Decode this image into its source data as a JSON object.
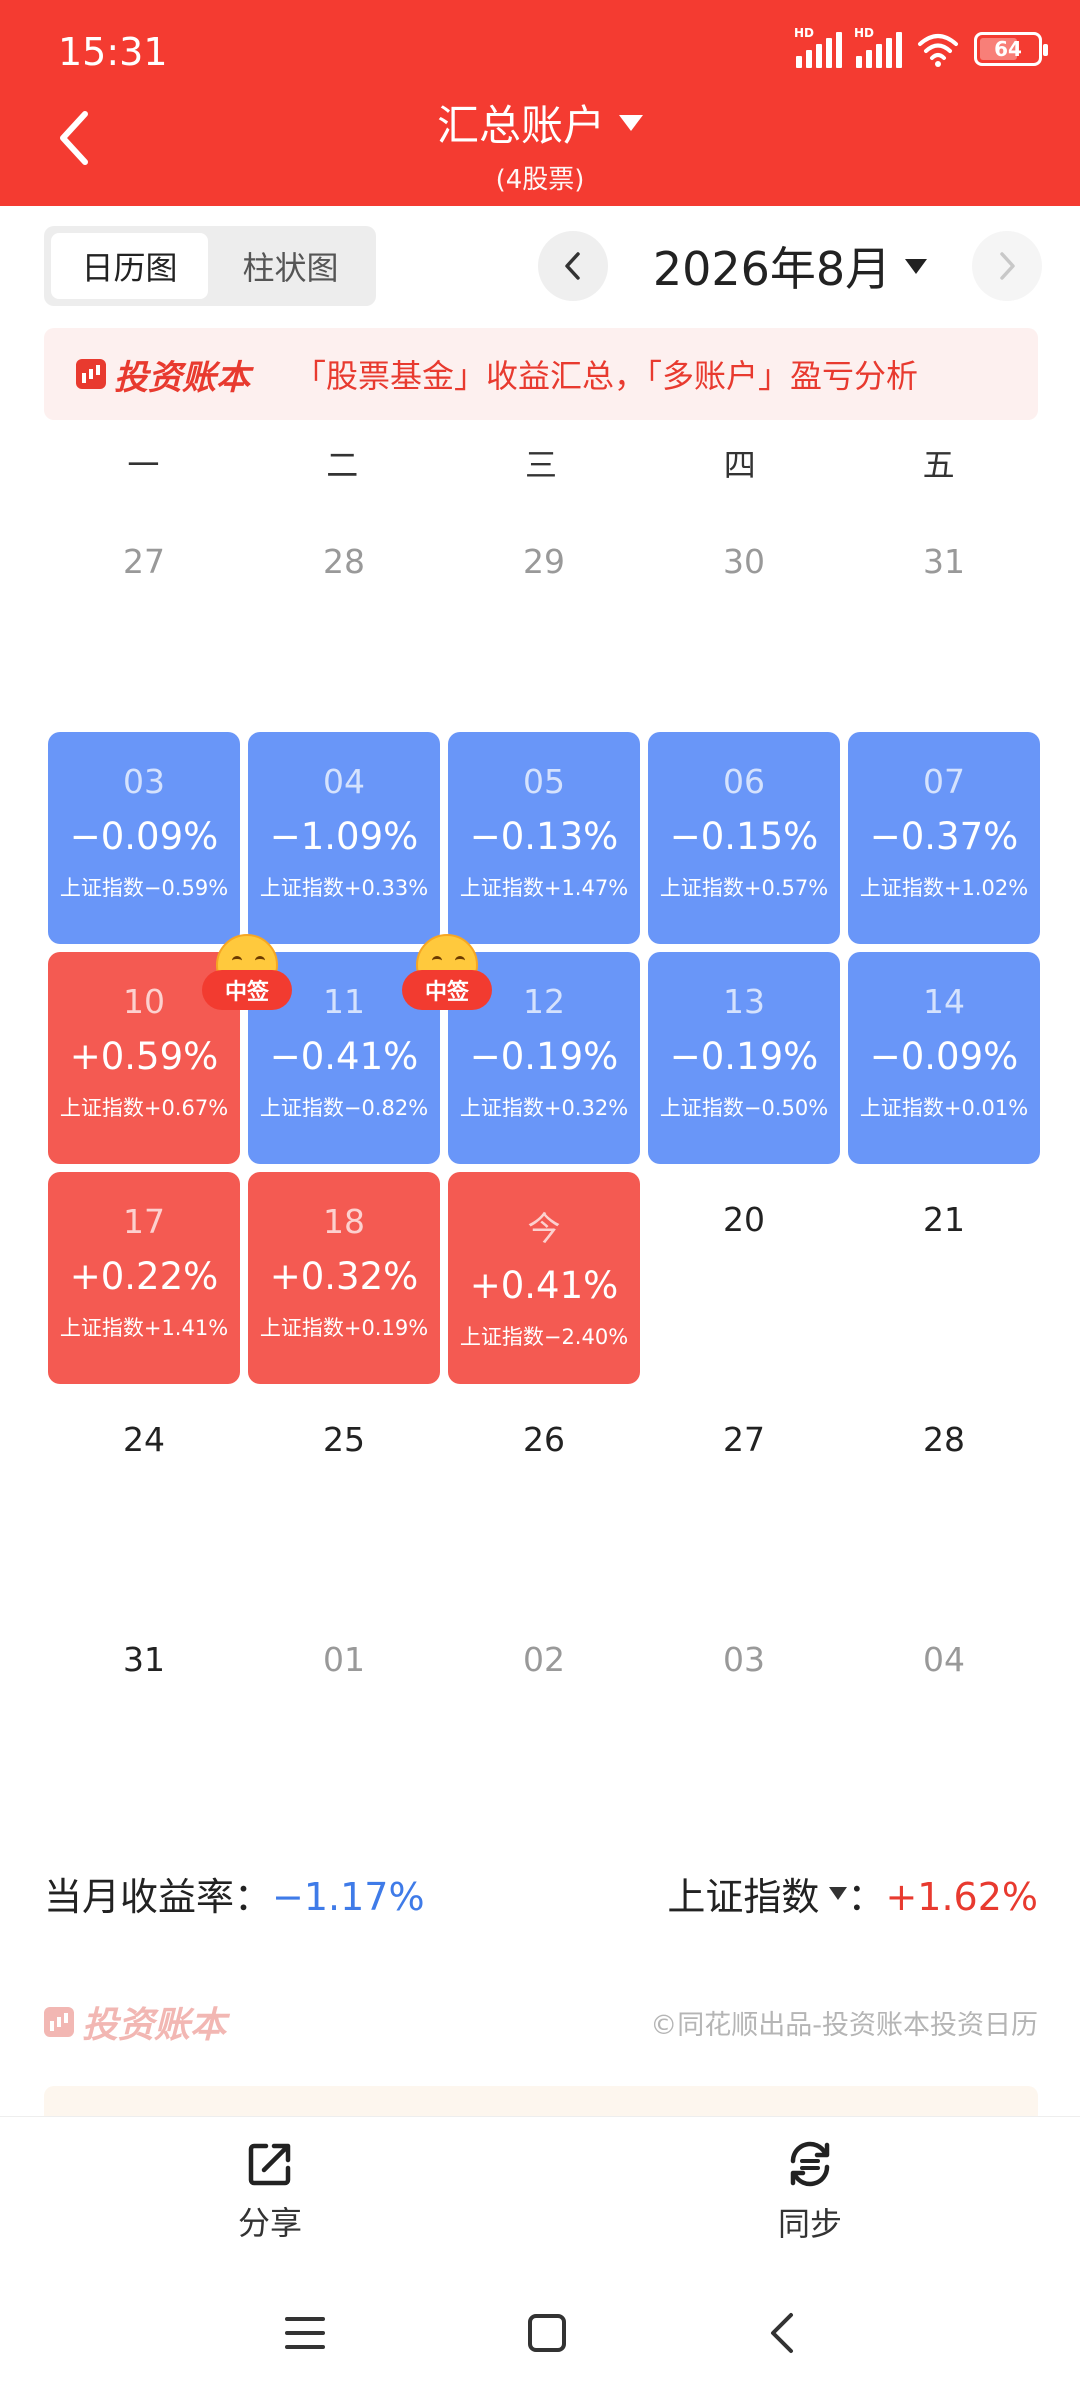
{
  "status_bar": {
    "time": "15:31",
    "signal_label": "HD",
    "battery": "64",
    "icons": [
      "hd-signal-icon",
      "hd-signal-icon",
      "wifi-icon",
      "battery-icon"
    ]
  },
  "header": {
    "title": "汇总账户",
    "subtitle": "(4股票)",
    "back_icon": "chevron-left-icon",
    "title_dropdown_icon": "triangle-down-icon",
    "background_color": "#f43b31"
  },
  "view_toggle": {
    "options": [
      "日历图",
      "柱状图"
    ],
    "active": "日历图"
  },
  "month_nav": {
    "label": "2026年8月",
    "prev_icon": "chevron-left-icon",
    "next_icon": "chevron-right-icon"
  },
  "banner": {
    "logo": "投资账本",
    "text": "「股票基金」收益汇总，「多账户」盈亏分析"
  },
  "calendar": {
    "weekdays": [
      "一",
      "二",
      "三",
      "四",
      "五"
    ],
    "weeks": [
      [
        {
          "day": "27",
          "state": "other"
        },
        {
          "day": "28",
          "state": "other"
        },
        {
          "day": "29",
          "state": "other"
        },
        {
          "day": "30",
          "state": "other"
        },
        {
          "day": "31",
          "state": "other"
        }
      ],
      [
        {
          "day": "03",
          "pct": "−0.09%",
          "index": "上证指数−0.59%",
          "state": "loss"
        },
        {
          "day": "04",
          "pct": "−1.09%",
          "index": "上证指数+0.33%",
          "state": "loss"
        },
        {
          "day": "05",
          "pct": "−0.13%",
          "index": "上证指数+1.47%",
          "state": "loss"
        },
        {
          "day": "06",
          "pct": "−0.15%",
          "index": "上证指数+0.57%",
          "state": "loss"
        },
        {
          "day": "07",
          "pct": "−0.37%",
          "index": "上证指数+1.02%",
          "state": "loss"
        }
      ],
      [
        {
          "day": "10",
          "pct": "+0.59%",
          "index": "上证指数+0.67%",
          "state": "gain"
        },
        {
          "day": "11",
          "pct": "−0.41%",
          "index": "上证指数−0.82%",
          "state": "loss",
          "badge": "中签"
        },
        {
          "day": "12",
          "pct": "−0.19%",
          "index": "上证指数+0.32%",
          "state": "loss",
          "badge": "中签"
        },
        {
          "day": "13",
          "pct": "−0.19%",
          "index": "上证指数−0.50%",
          "state": "loss"
        },
        {
          "day": "14",
          "pct": "−0.09%",
          "index": "上证指数+0.01%",
          "state": "loss"
        }
      ],
      [
        {
          "day": "17",
          "pct": "+0.22%",
          "index": "上证指数+1.41%",
          "state": "gain"
        },
        {
          "day": "18",
          "pct": "+0.32%",
          "index": "上证指数+0.19%",
          "state": "gain"
        },
        {
          "day": "今",
          "pct": "+0.41%",
          "index": "上证指数−2.40%",
          "state": "gain"
        },
        {
          "day": "20",
          "state": "current"
        },
        {
          "day": "21",
          "state": "current"
        }
      ],
      [
        {
          "day": "24",
          "state": "current"
        },
        {
          "day": "25",
          "state": "current"
        },
        {
          "day": "26",
          "state": "current"
        },
        {
          "day": "27",
          "state": "current"
        },
        {
          "day": "28",
          "state": "current"
        }
      ],
      [
        {
          "day": "31",
          "state": "current"
        },
        {
          "day": "01",
          "state": "other"
        },
        {
          "day": "02",
          "state": "other"
        },
        {
          "day": "03",
          "state": "other"
        },
        {
          "day": "04",
          "state": "other"
        }
      ]
    ],
    "colors": {
      "loss": "#6996f8",
      "gain": "#f45a52"
    }
  },
  "summary": {
    "monthly_return_label": "当月收益率：",
    "monthly_return": "−1.17%",
    "index_label": "上证指数",
    "index_separator": "：",
    "index_return": "+1.62%"
  },
  "footer": {
    "logo": "投资账本",
    "credit": "©同花顺出品-投资账本投资日历"
  },
  "bottom_bar": {
    "share_label": "分享",
    "share_icon": "share-icon",
    "sync_label": "同步",
    "sync_icon": "sync-icon"
  },
  "system_nav": {
    "icons": [
      "menu-icon",
      "home-icon",
      "back-icon"
    ]
  }
}
